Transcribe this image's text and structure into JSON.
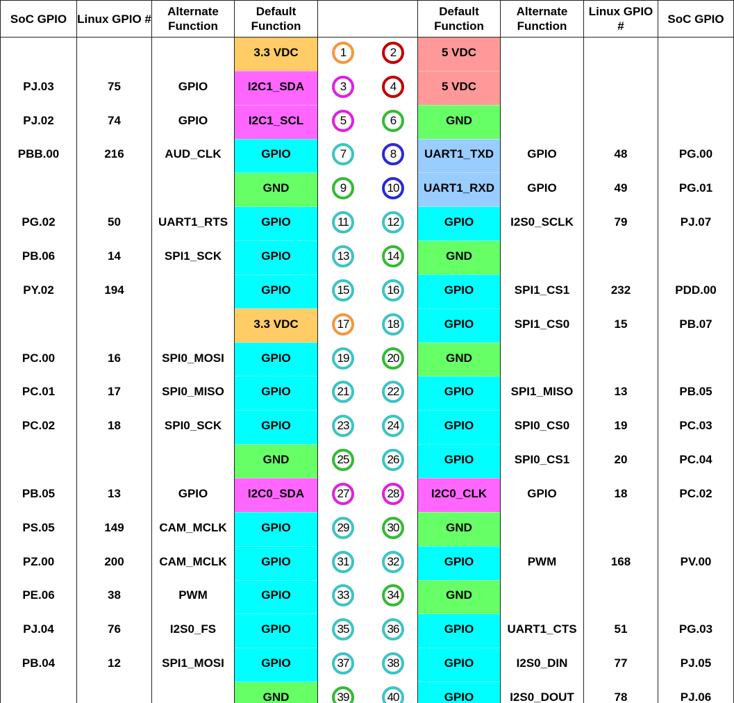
{
  "headers": [
    "SoC GPIO",
    "Linux GPIO #",
    "Alternate Function",
    "Default Function",
    "",
    "Default Function",
    "Alternate Function",
    "Linux GPIO #",
    "SoC GPIO"
  ],
  "colors": {
    "3.3 VDC": "#ffcc66",
    "5 VDC": "#ff9999",
    "I2C": "#ff66ff",
    "GND": "#66ff66",
    "GPIO": "#00ffff",
    "UART": "#99ccff"
  },
  "pin_colors": {
    "orange": "#f7963c",
    "red": "#c00000",
    "magenta": "#e020e0",
    "green": "#33bb33",
    "blue": "#2a2ad6",
    "teal": "#3cc4c4"
  },
  "rows": [
    {
      "l": [
        "",
        "",
        "",
        "3.3 VDC"
      ],
      "pl": [
        1,
        "orange"
      ],
      "pr": [
        2,
        "red"
      ],
      "r": [
        "5 VDC",
        "",
        "",
        ""
      ]
    },
    {
      "l": [
        "PJ.03",
        "75",
        "GPIO",
        "I2C1_SDA"
      ],
      "pl": [
        3,
        "magenta"
      ],
      "pr": [
        4,
        "red"
      ],
      "r": [
        "5 VDC",
        "",
        "",
        ""
      ]
    },
    {
      "l": [
        "PJ.02",
        "74",
        "GPIO",
        "I2C1_SCL"
      ],
      "pl": [
        5,
        "magenta"
      ],
      "pr": [
        6,
        "green"
      ],
      "r": [
        "GND",
        "",
        "",
        ""
      ]
    },
    {
      "l": [
        "PBB.00",
        "216",
        "AUD_CLK",
        "GPIO"
      ],
      "pl": [
        7,
        "teal"
      ],
      "pr": [
        8,
        "blue"
      ],
      "r": [
        "UART1_TXD",
        "GPIO",
        "48",
        "PG.00"
      ]
    },
    {
      "l": [
        "",
        "",
        "",
        "GND"
      ],
      "pl": [
        9,
        "green"
      ],
      "pr": [
        10,
        "blue"
      ],
      "r": [
        "UART1_RXD",
        "GPIO",
        "49",
        "PG.01"
      ]
    },
    {
      "l": [
        "PG.02",
        "50",
        "UART1_RTS",
        "GPIO"
      ],
      "pl": [
        11,
        "teal"
      ],
      "pr": [
        12,
        "teal"
      ],
      "r": [
        "GPIO",
        "I2S0_SCLK",
        "79",
        "PJ.07"
      ]
    },
    {
      "l": [
        "PB.06",
        "14",
        "SPI1_SCK",
        "GPIO"
      ],
      "pl": [
        13,
        "teal"
      ],
      "pr": [
        14,
        "green"
      ],
      "r": [
        "GND",
        "",
        "",
        ""
      ]
    },
    {
      "l": [
        "PY.02",
        "194",
        "",
        "GPIO"
      ],
      "pl": [
        15,
        "teal"
      ],
      "pr": [
        16,
        "teal"
      ],
      "r": [
        "GPIO",
        "SPI1_CS1",
        "232",
        "PDD.00"
      ]
    },
    {
      "l": [
        "",
        "",
        "",
        "3.3 VDC"
      ],
      "pl": [
        17,
        "orange"
      ],
      "pr": [
        18,
        "teal"
      ],
      "r": [
        "GPIO",
        "SPI1_CS0",
        "15",
        "PB.07"
      ]
    },
    {
      "l": [
        "PC.00",
        "16",
        "SPI0_MOSI",
        "GPIO"
      ],
      "pl": [
        19,
        "teal"
      ],
      "pr": [
        20,
        "green"
      ],
      "r": [
        "GND",
        "",
        "",
        ""
      ]
    },
    {
      "l": [
        "PC.01",
        "17",
        "SPI0_MISO",
        "GPIO"
      ],
      "pl": [
        21,
        "teal"
      ],
      "pr": [
        22,
        "teal"
      ],
      "r": [
        "GPIO",
        "SPI1_MISO",
        "13",
        "PB.05"
      ]
    },
    {
      "l": [
        "PC.02",
        "18",
        "SPI0_SCK",
        "GPIO"
      ],
      "pl": [
        23,
        "teal"
      ],
      "pr": [
        24,
        "teal"
      ],
      "r": [
        "GPIO",
        "SPI0_CS0",
        "19",
        "PC.03"
      ]
    },
    {
      "l": [
        "",
        "",
        "",
        "GND"
      ],
      "pl": [
        25,
        "green"
      ],
      "pr": [
        26,
        "teal"
      ],
      "r": [
        "GPIO",
        "SPI0_CS1",
        "20",
        "PC.04"
      ]
    },
    {
      "l": [
        "PB.05",
        "13",
        "GPIO",
        "I2C0_SDA"
      ],
      "pl": [
        27,
        "magenta"
      ],
      "pr": [
        28,
        "magenta"
      ],
      "r": [
        "I2C0_CLK",
        "GPIO",
        "18",
        "PC.02"
      ]
    },
    {
      "l": [
        "PS.05",
        "149",
        "CAM_MCLK",
        "GPIO"
      ],
      "pl": [
        29,
        "teal"
      ],
      "pr": [
        30,
        "green"
      ],
      "r": [
        "GND",
        "",
        "",
        ""
      ]
    },
    {
      "l": [
        "PZ.00",
        "200",
        "CAM_MCLK",
        "GPIO"
      ],
      "pl": [
        31,
        "teal"
      ],
      "pr": [
        32,
        "teal"
      ],
      "r": [
        "GPIO",
        "PWM",
        "168",
        "PV.00"
      ]
    },
    {
      "l": [
        "PE.06",
        "38",
        "PWM",
        "GPIO"
      ],
      "pl": [
        33,
        "teal"
      ],
      "pr": [
        34,
        "green"
      ],
      "r": [
        "GND",
        "",
        "",
        ""
      ]
    },
    {
      "l": [
        "PJ.04",
        "76",
        "I2S0_FS",
        "GPIO"
      ],
      "pl": [
        35,
        "teal"
      ],
      "pr": [
        36,
        "teal"
      ],
      "r": [
        "GPIO",
        "UART1_CTS",
        "51",
        "PG.03"
      ]
    },
    {
      "l": [
        "PB.04",
        "12",
        "SPI1_MOSI",
        "GPIO"
      ],
      "pl": [
        37,
        "teal"
      ],
      "pr": [
        38,
        "teal"
      ],
      "r": [
        "GPIO",
        "I2S0_DIN",
        "77",
        "PJ.05"
      ]
    },
    {
      "l": [
        "",
        "",
        "",
        "GND"
      ],
      "pl": [
        39,
        "green"
      ],
      "pr": [
        40,
        "teal"
      ],
      "r": [
        "GPIO",
        "I2S0_DOUT",
        "78",
        "PJ.06"
      ]
    }
  ]
}
